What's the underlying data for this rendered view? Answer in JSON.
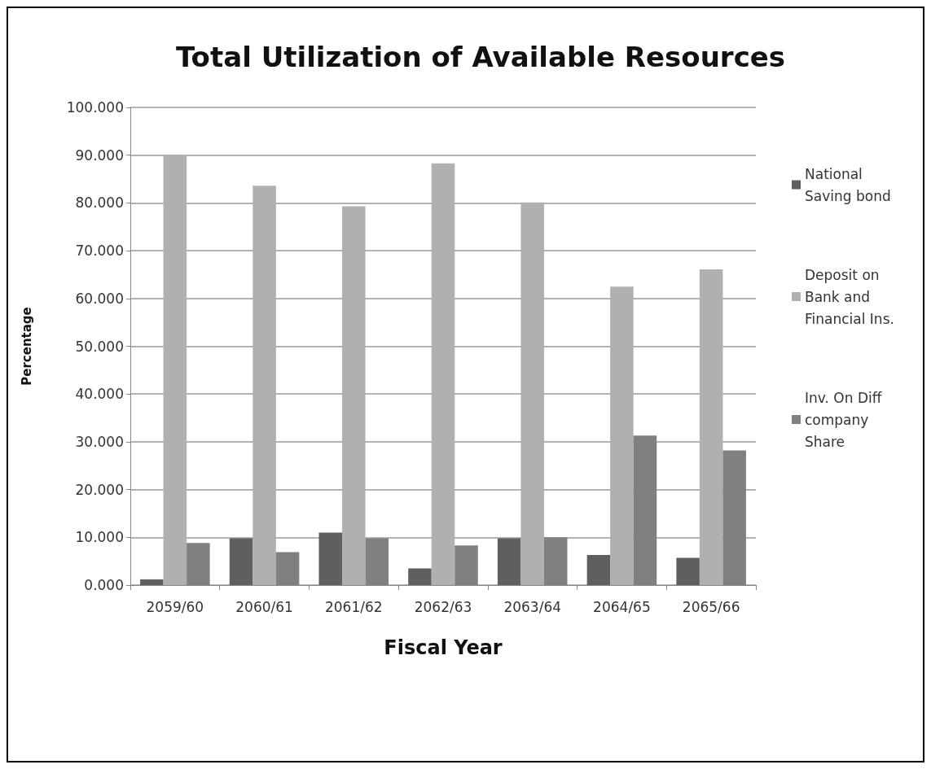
{
  "chart_data": {
    "type": "bar",
    "title": "Total Utilization of Available Resources",
    "xlabel": "Fiscal Year",
    "ylabel": "Percentage",
    "categories": [
      "2059/60",
      "2060/61",
      "2061/62",
      "2062/63",
      "2063/64",
      "2064/65",
      "2065/66"
    ],
    "series": [
      {
        "name": "National Saving bond",
        "color": "#5f5f5f",
        "values": [
          1.2,
          9.8,
          11.0,
          3.5,
          9.8,
          6.3,
          5.7
        ]
      },
      {
        "name": "Deposit on Bank and Financial Ins.",
        "color": "#b0b0b0",
        "values": [
          90.0,
          83.6,
          79.3,
          88.3,
          80.1,
          62.5,
          66.1
        ]
      },
      {
        "name": "Inv. On Diff company Share",
        "color": "#808080",
        "values": [
          8.8,
          6.9,
          9.8,
          8.3,
          10.0,
          31.3,
          28.2
        ]
      }
    ],
    "ylim": [
      0,
      100
    ],
    "yticks": [
      {
        "value": 0,
        "label": "0.000"
      },
      {
        "value": 10,
        "label": "10.000"
      },
      {
        "value": 20,
        "label": "20.000"
      },
      {
        "value": 30,
        "label": "30.000"
      },
      {
        "value": 40,
        "label": "40.000"
      },
      {
        "value": 50,
        "label": "50.000"
      },
      {
        "value": 60,
        "label": "60.000"
      },
      {
        "value": 70,
        "label": "70.000"
      },
      {
        "value": 80,
        "label": "80.000"
      },
      {
        "value": 90,
        "label": "90.000"
      },
      {
        "value": 100,
        "label": "100.000"
      }
    ],
    "grid": "y",
    "legend": "right"
  }
}
